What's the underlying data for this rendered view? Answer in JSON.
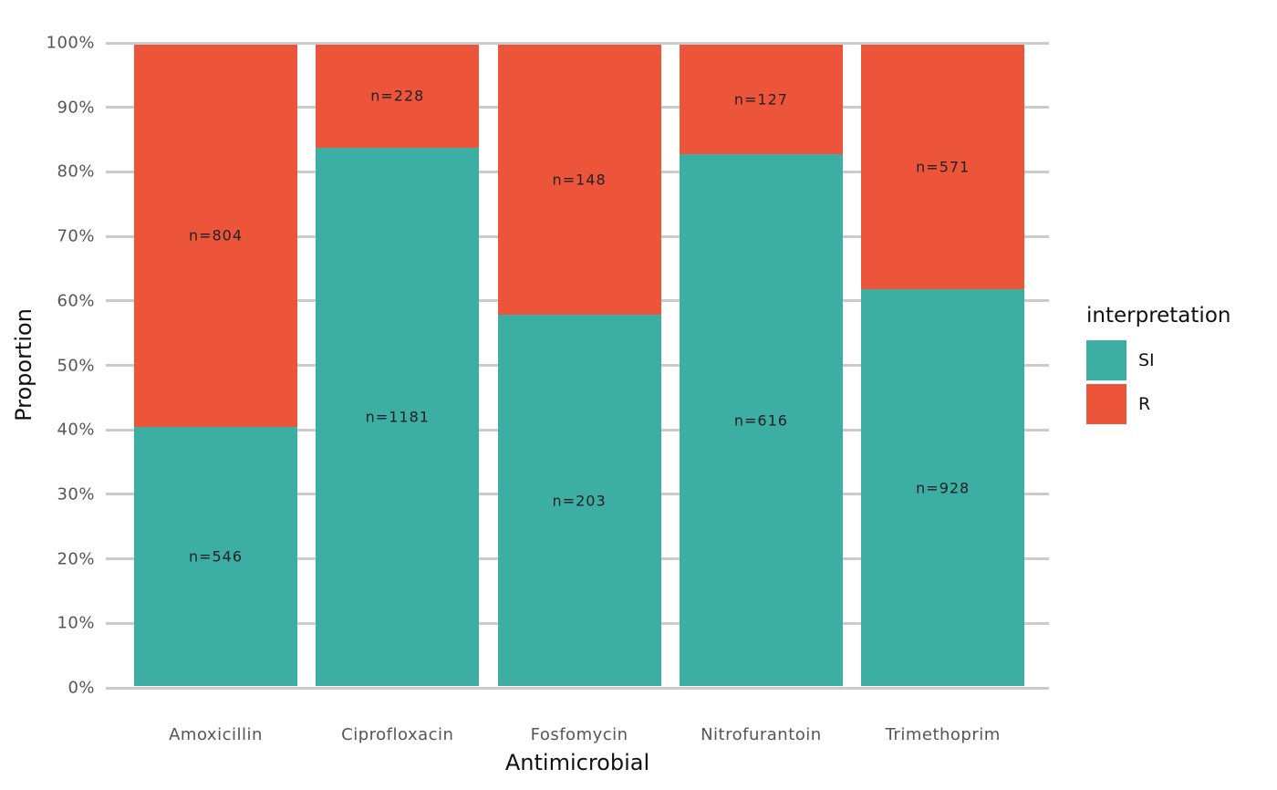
{
  "chart_data": {
    "type": "bar",
    "subtype": "stacked-100-percent",
    "title": "",
    "xlabel": "Antimicrobial",
    "ylabel": "Proportion",
    "categories": [
      "Amoxicillin",
      "Ciprofloxacin",
      "Fosfomycin",
      "Nitrofurantoin",
      "Trimethoprim"
    ],
    "series": [
      {
        "name": "SI",
        "color": "#3CAEA3",
        "values": [
          546,
          1181,
          203,
          616,
          928
        ],
        "labels": [
          "n=546",
          "n=1181",
          "n=203",
          "n=616",
          "n=928"
        ]
      },
      {
        "name": "R",
        "color": "#ED553B",
        "values": [
          804,
          228,
          148,
          127,
          571
        ],
        "labels": [
          "n=804",
          "n=228",
          "n=148",
          "n=127",
          "n=571"
        ]
      }
    ],
    "stack_order_top_to_bottom": [
      "R",
      "SI"
    ],
    "y_ticks": [
      "0%",
      "10%",
      "20%",
      "30%",
      "40%",
      "50%",
      "60%",
      "70%",
      "80%",
      "90%",
      "100%"
    ],
    "ylim": [
      0,
      1
    ],
    "grid": true,
    "legend": {
      "title": "interpretation",
      "position": "right",
      "items": [
        {
          "label": "SI",
          "color": "#3CAEA3"
        },
        {
          "label": "R",
          "color": "#ED553B"
        }
      ]
    },
    "colors": {
      "grid": "#CBCBCB",
      "tick_text": "#555555",
      "axis_title_text": "#111111",
      "bar_label_text": "#222222",
      "background": "#FFFFFF"
    }
  }
}
